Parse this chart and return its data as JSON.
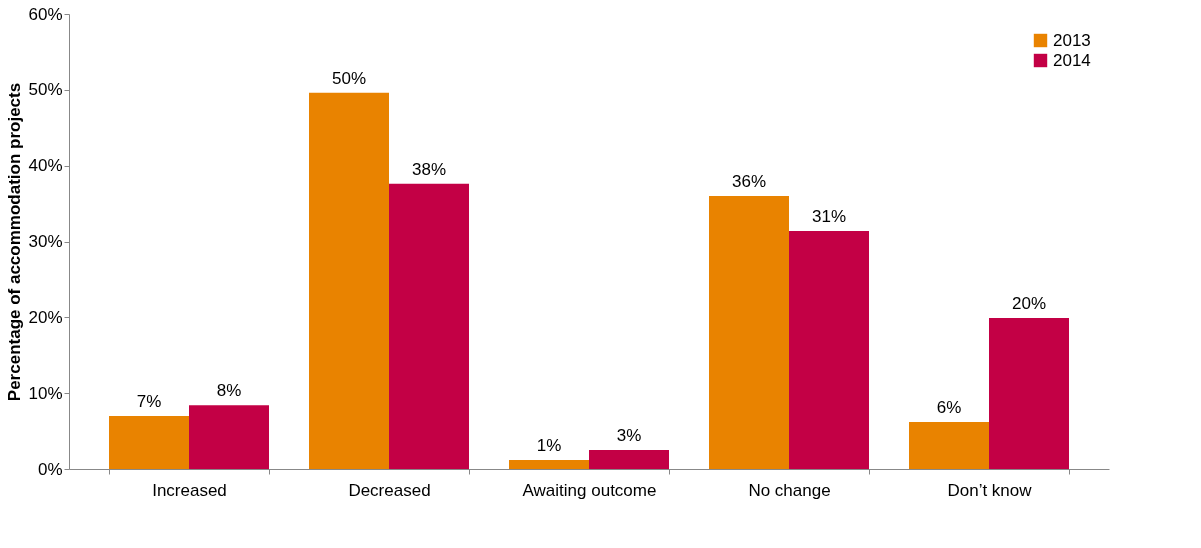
{
  "chart_data": {
    "type": "bar",
    "ylabel": "Percentage of accommodation projects",
    "categories": [
      "Increased",
      "Decreased",
      "Awaiting outcome",
      "No change",
      "Don’t know"
    ],
    "series": [
      {
        "name": "2013",
        "color": "#e98300",
        "values": [
          7.0,
          49.6,
          1.2,
          36.0,
          6.2
        ],
        "value_labels": [
          "7%",
          "50%",
          "1%",
          "36%",
          "6%"
        ]
      },
      {
        "name": "2014",
        "color": "#c30045",
        "values": [
          8.4,
          37.6,
          2.5,
          31.4,
          19.9
        ],
        "value_labels": [
          "8%",
          "38%",
          "3%",
          "31%",
          "20%"
        ]
      }
    ],
    "ylim": [
      0,
      60
    ],
    "yticks": [
      {
        "value": 0,
        "label": "0%"
      },
      {
        "value": 10,
        "label": "10%"
      },
      {
        "value": 20,
        "label": "20%"
      },
      {
        "value": 30,
        "label": "30%"
      },
      {
        "value": 40,
        "label": "40%"
      },
      {
        "value": 50,
        "label": "50%"
      },
      {
        "value": 60,
        "label": "60%"
      }
    ],
    "legend": "top right",
    "grid": false
  }
}
